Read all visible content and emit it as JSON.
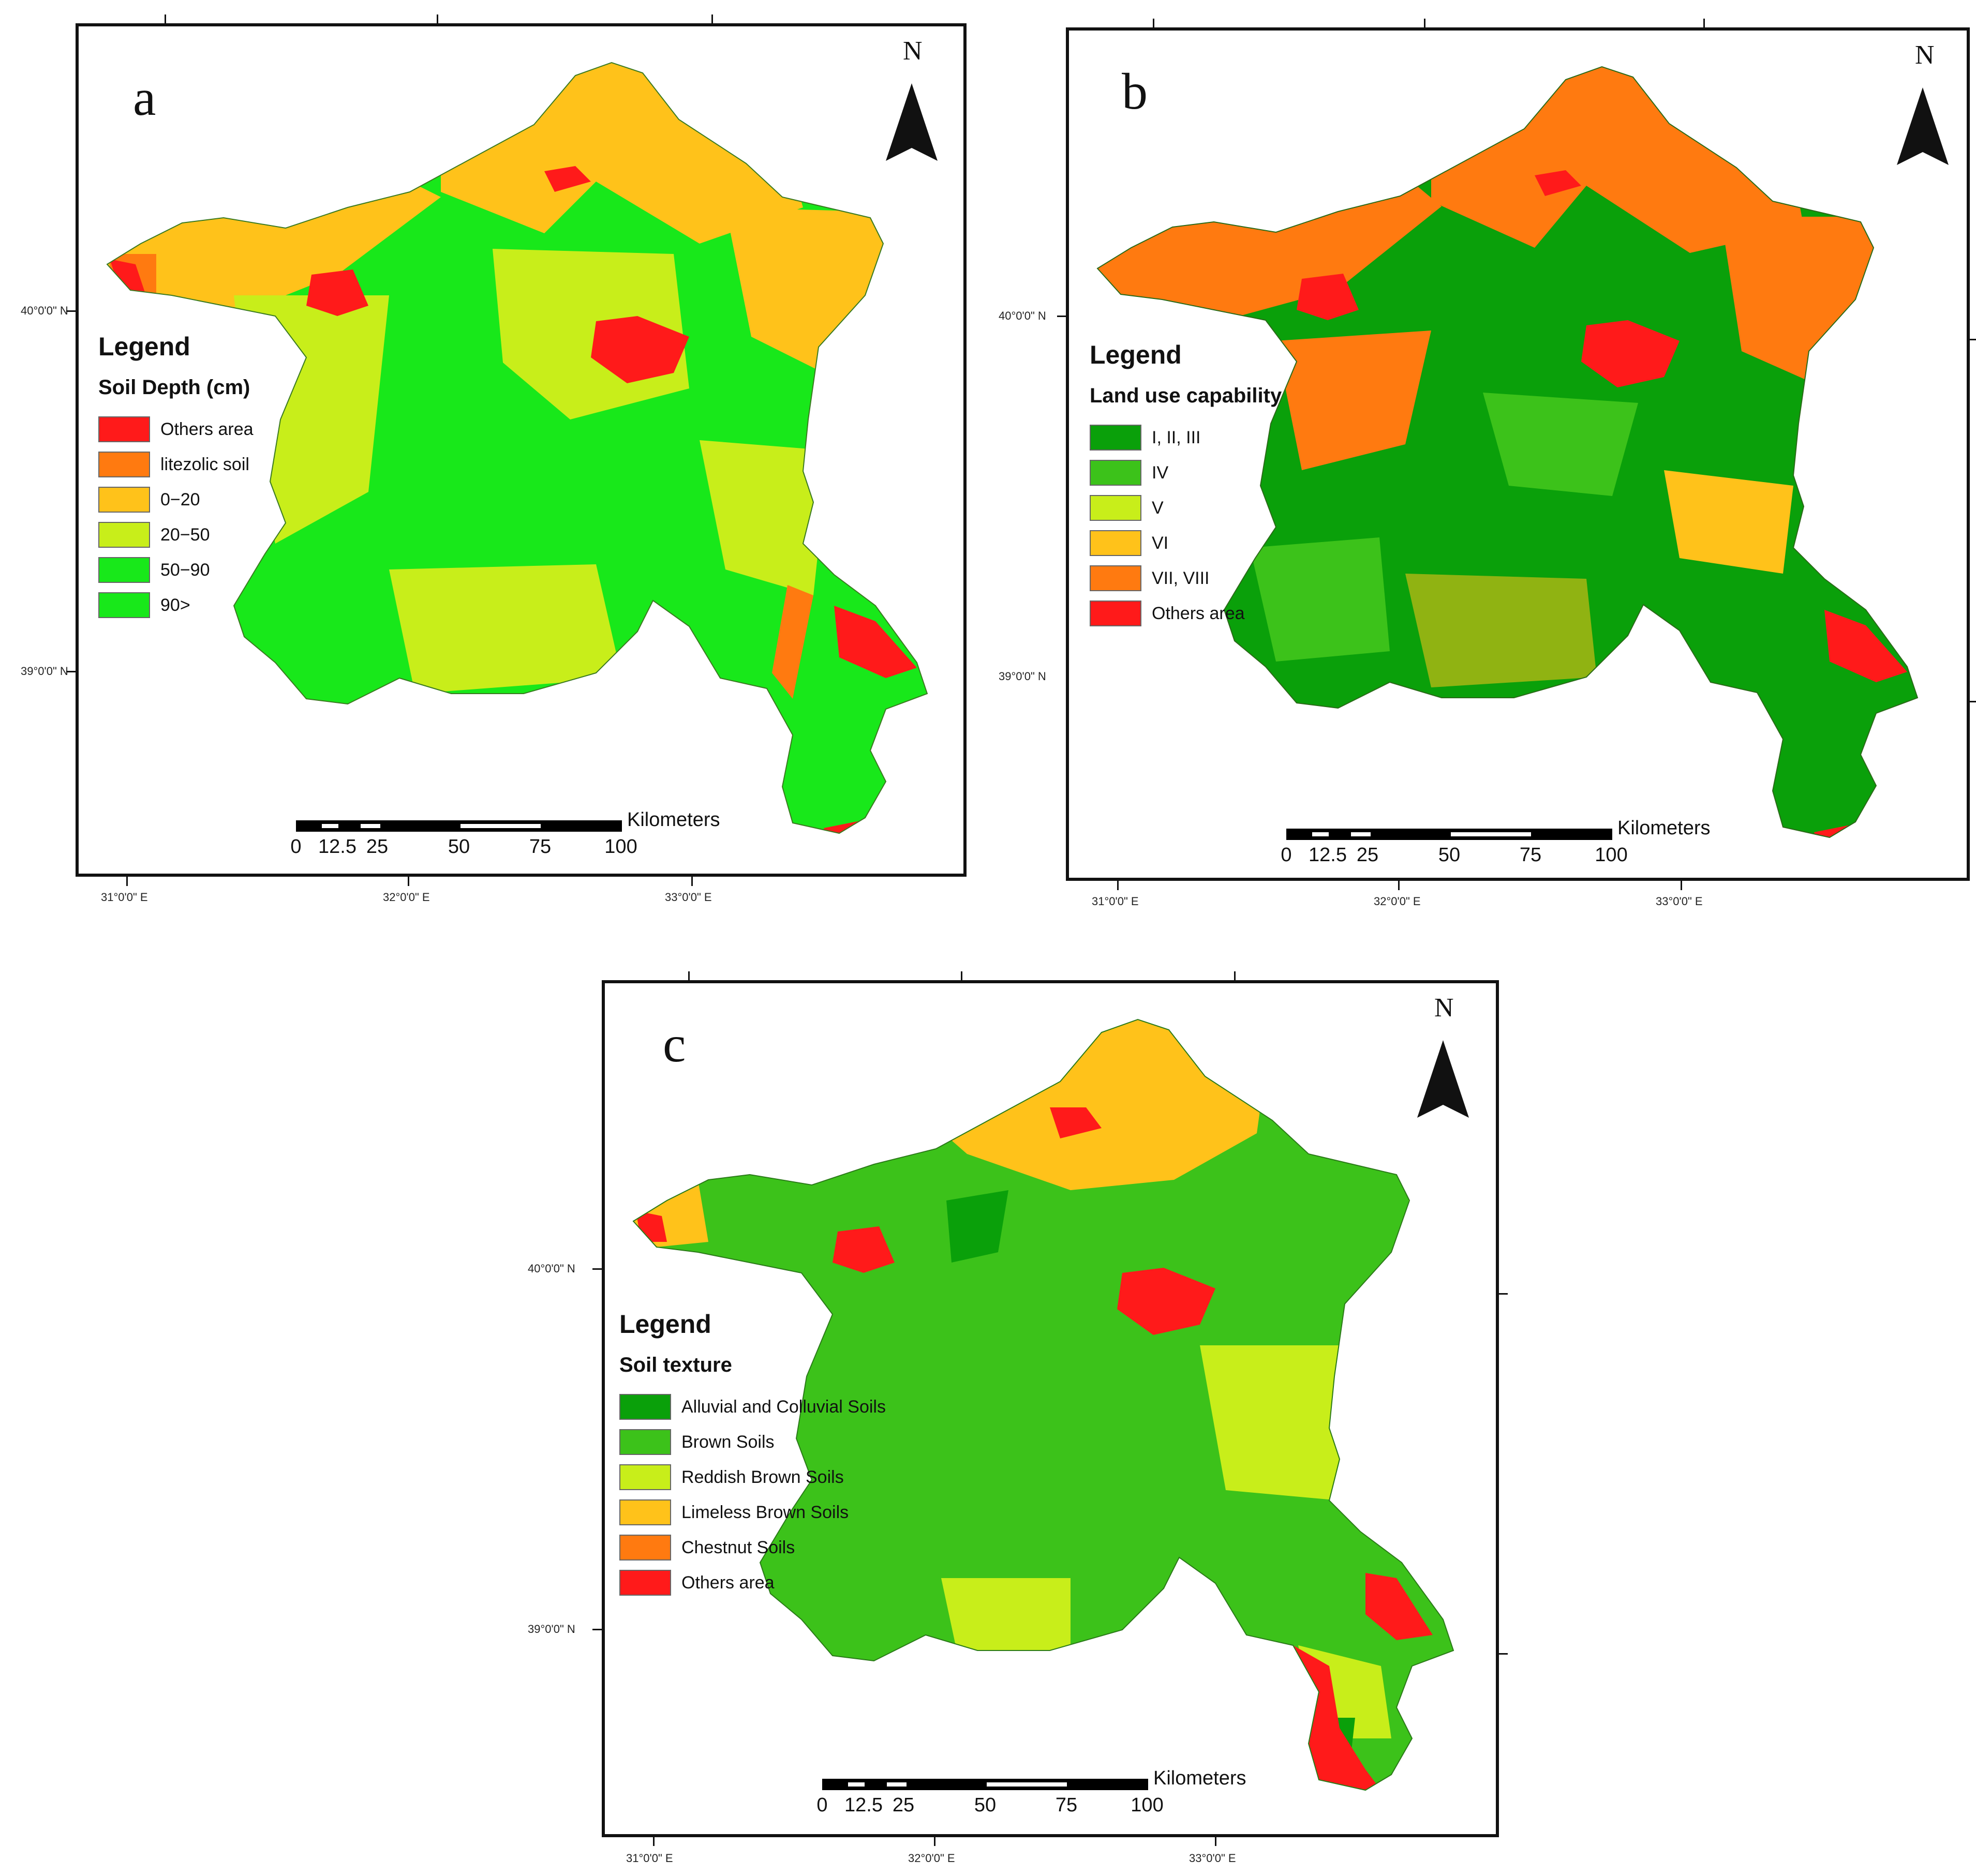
{
  "palette": {
    "others_red": "#ff1a1a",
    "orange": "#ff7a10",
    "yellow": "#ffc21a",
    "yellow_green": "#c8ee1a",
    "bright_green": "#18e81a",
    "dark_green": "#0aa00a",
    "mid_green": "#3cc21a"
  },
  "icons": {
    "north_arrow": "north-arrow-icon"
  },
  "panels": [
    {
      "letter": "a",
      "north": "N",
      "legend_title": "Legend",
      "legend_subtitle": "Soil Depth (cm)",
      "legend_items": [
        {
          "label": "Others area",
          "color": "#ff1a1a"
        },
        {
          "label": "litezolic soil",
          "color": "#ff7a10"
        },
        {
          "label": "0−20",
          "color": "#ffc21a"
        },
        {
          "label": "20−50",
          "color": "#c8ee1a"
        },
        {
          "label": "50−90",
          "color": "#18e81a"
        },
        {
          "label": "90>",
          "color": "#18e81a"
        }
      ],
      "scale_unit": "Kilometers",
      "scale_ticks": [
        "0",
        "12.5",
        "25",
        "50",
        "75",
        "100"
      ],
      "lat_labels": [
        "40°0'0\" N",
        "39°0'0\" N"
      ],
      "lon_labels": [
        "31°0'0\" E",
        "32°0'0\" E",
        "33°0'0\" E"
      ]
    },
    {
      "letter": "b",
      "north": "N",
      "legend_title": "Legend",
      "legend_subtitle": "Land use capability",
      "legend_items": [
        {
          "label": "I, II, III",
          "color": "#0aa00a"
        },
        {
          "label": "IV",
          "color": "#3cc21a"
        },
        {
          "label": "V",
          "color": "#c8ee1a"
        },
        {
          "label": "VI",
          "color": "#ffc21a"
        },
        {
          "label": "VII, VIII",
          "color": "#ff7a10"
        },
        {
          "label": "Others area",
          "color": "#ff1a1a"
        }
      ],
      "scale_unit": "Kilometers",
      "scale_ticks": [
        "0",
        "12.5",
        "25",
        "50",
        "75",
        "100"
      ],
      "lat_labels": [
        "40°0'0\" N",
        "39°0'0\" N"
      ],
      "lon_labels": [
        "31°0'0\" E",
        "32°0'0\" E",
        "33°0'0\" E"
      ]
    },
    {
      "letter": "c",
      "north": "N",
      "legend_title": "Legend",
      "legend_subtitle": "Soil texture",
      "legend_items": [
        {
          "label": "Alluvial and Colluvial Soils",
          "color": "#0aa00a"
        },
        {
          "label": "Brown Soils",
          "color": "#3cc21a"
        },
        {
          "label": "Reddish Brown Soils",
          "color": "#c8ee1a"
        },
        {
          "label": "Limeless Brown Soils",
          "color": "#ffc21a"
        },
        {
          "label": "Chestnut Soils",
          "color": "#ff7a10"
        },
        {
          "label": "Others area",
          "color": "#ff1a1a"
        }
      ],
      "scale_unit": "Kilometers",
      "scale_ticks": [
        "0",
        "12.5",
        "25",
        "50",
        "75",
        "100"
      ],
      "lat_labels": [
        "40°0'0\" N",
        "39°0'0\" N"
      ],
      "lon_labels": [
        "31°0'0\" E",
        "32°0'0\" E",
        "33°0'0\" E"
      ]
    }
  ]
}
